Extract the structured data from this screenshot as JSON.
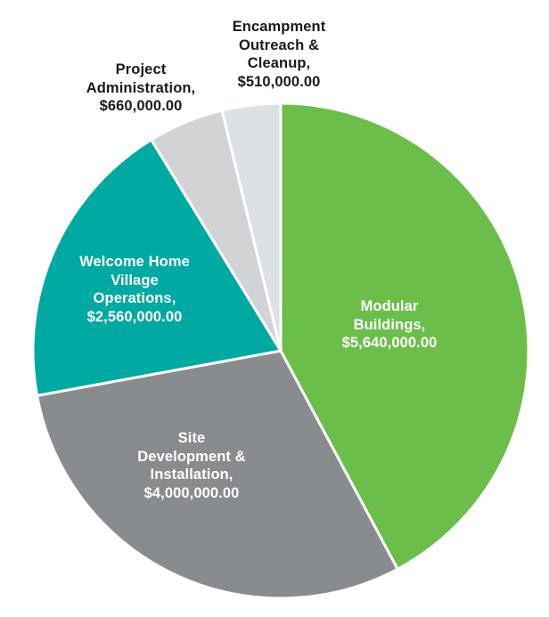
{
  "chart_data": {
    "type": "pie",
    "title": "",
    "legend": "none",
    "start_angle_deg": 0,
    "direction": "clockwise",
    "total_value": 13370000,
    "slices": [
      {
        "key": "modular-buildings",
        "label": "Modular Buildings",
        "value": 5640000,
        "value_display": "$5,640,000.00",
        "color": "#6CBE4B",
        "label_color": "#FFFFFF",
        "label_placement": "inside"
      },
      {
        "key": "site-development-installation",
        "label": "Site Development & Installation",
        "value": 4000000,
        "value_display": "$4,000,000.00",
        "color": "#898C8E",
        "label_color": "#FFFFFF",
        "label_placement": "inside"
      },
      {
        "key": "welcome-home-village-operations",
        "label": "Welcome Home Village Operations",
        "value": 2560000,
        "value_display": "$2,560,000.00",
        "color": "#00A9A1",
        "label_color": "#FFFFFF",
        "label_placement": "inside"
      },
      {
        "key": "project-administration",
        "label": "Project Administration",
        "value": 660000,
        "value_display": "$660,000.00",
        "color": "#D1D3D4",
        "label_color": "#1A1A1A",
        "label_placement": "outside"
      },
      {
        "key": "encampment-outreach-cleanup",
        "label": "Encampment Outreach & Cleanup",
        "value": 510000,
        "value_display": "$510,000.00",
        "color": "#DCE2E4",
        "label_color": "#1A1A1A",
        "label_placement": "outside"
      }
    ]
  },
  "labels": {
    "encampment_outreach": "Encampment\nOutreach &\nCleanup,\n$510,000.00",
    "project_administration": "Project\nAdministration,\n$660,000.00",
    "modular_buildings": "Modular\nBuildings,\n$5,640,000.00",
    "site_development": "Site\nDevelopment &\nInstallation,\n$4,000,000.00",
    "welcome_home_village": "Welcome Home\nVillage\nOperations,\n$2,560,000.00"
  },
  "colors": {
    "background": "#FFFFFF",
    "slice_border": "#FFFFFF",
    "text_dark": "#1A1A1A",
    "text_light": "#FFFFFF"
  }
}
